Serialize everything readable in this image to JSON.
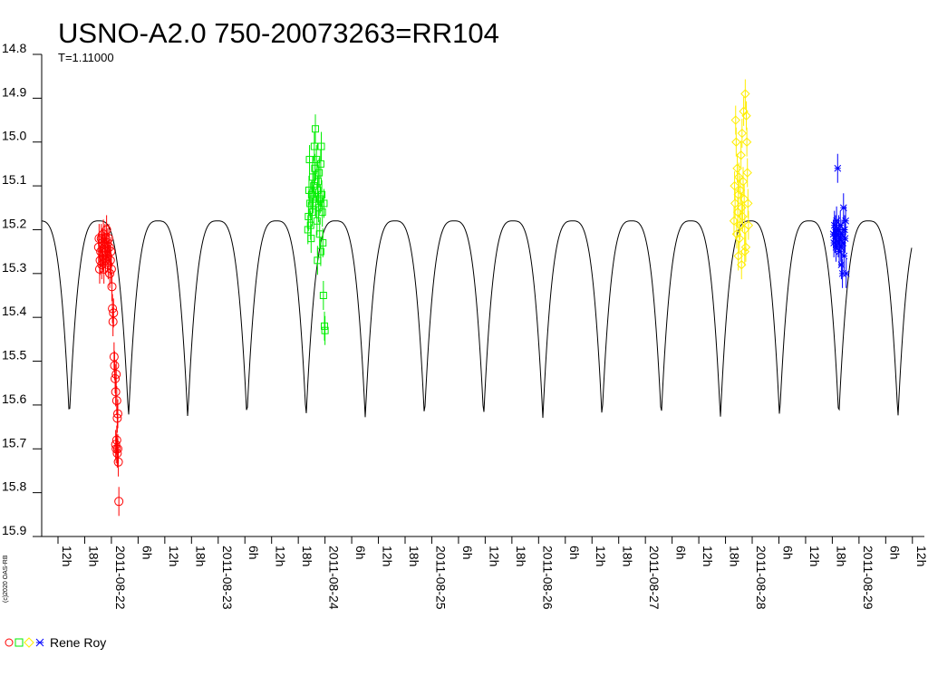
{
  "chart_data": {
    "type": "scatter",
    "title": "USNO-A2.0 750-20073263=RR104",
    "subtitle": "T=1.11000",
    "copyright": "(c)2020 OAS-RB",
    "ylim": [
      15.9,
      14.8
    ],
    "yticks": [
      "14.8",
      "14.9",
      "15.0",
      "15.1",
      "15.2",
      "15.3",
      "15.4",
      "15.5",
      "15.6",
      "15.7",
      "15.8",
      "15.9"
    ],
    "x_unit": "days since 2011-08-21 00:00",
    "xlim": [
      1.5,
      9.68
    ],
    "xticks": [
      {
        "x": 1.5,
        "label": "12h"
      },
      {
        "x": 1.75,
        "label": "18h"
      },
      {
        "x": 2.0,
        "label": "2011-08-22"
      },
      {
        "x": 2.25,
        "label": "6h"
      },
      {
        "x": 2.5,
        "label": "12h"
      },
      {
        "x": 2.75,
        "label": "18h"
      },
      {
        "x": 3.0,
        "label": "2011-08-23"
      },
      {
        "x": 3.25,
        "label": "6h"
      },
      {
        "x": 3.5,
        "label": "12h"
      },
      {
        "x": 3.75,
        "label": "18h"
      },
      {
        "x": 4.0,
        "label": "2011-08-24"
      },
      {
        "x": 4.25,
        "label": "6h"
      },
      {
        "x": 4.5,
        "label": "12h"
      },
      {
        "x": 4.75,
        "label": "18h"
      },
      {
        "x": 5.0,
        "label": "2011-08-25"
      },
      {
        "x": 5.25,
        "label": "6h"
      },
      {
        "x": 5.5,
        "label": "12h"
      },
      {
        "x": 5.75,
        "label": "18h"
      },
      {
        "x": 6.0,
        "label": "2011-08-26"
      },
      {
        "x": 6.25,
        "label": "6h"
      },
      {
        "x": 6.5,
        "label": "12h"
      },
      {
        "x": 6.75,
        "label": "18h"
      },
      {
        "x": 7.0,
        "label": "2011-08-27"
      },
      {
        "x": 7.25,
        "label": "6h"
      },
      {
        "x": 7.5,
        "label": "12h"
      },
      {
        "x": 7.75,
        "label": "18h"
      },
      {
        "x": 8.0,
        "label": "2011-08-28"
      },
      {
        "x": 8.25,
        "label": "6h"
      },
      {
        "x": 8.5,
        "label": "12h"
      },
      {
        "x": 8.75,
        "label": "18h"
      },
      {
        "x": 9.0,
        "label": "2011-08-29"
      },
      {
        "x": 9.25,
        "label": "6h"
      },
      {
        "x": 9.5,
        "label": "12h"
      }
    ],
    "model_curve": {
      "max_mag": 15.18,
      "min_mag": 15.63,
      "period_days": 0.5542,
      "min_epoch": 1.606
    },
    "legend": {
      "label": "Rene Roy",
      "markers": [
        "circle",
        "square",
        "diamond",
        "star"
      ]
    },
    "series": [
      {
        "marker": "circle",
        "color": "#ff0000",
        "points": [
          [
            1.88,
            15.24
          ],
          [
            1.89,
            15.29
          ],
          [
            1.885,
            15.22
          ],
          [
            1.895,
            15.27
          ],
          [
            1.9,
            15.25
          ],
          [
            1.905,
            15.22
          ],
          [
            1.91,
            15.28
          ],
          [
            1.915,
            15.23
          ],
          [
            1.92,
            15.26
          ],
          [
            1.925,
            15.21
          ],
          [
            1.93,
            15.29
          ],
          [
            1.935,
            15.24
          ],
          [
            1.94,
            15.22
          ],
          [
            1.945,
            15.27
          ],
          [
            1.95,
            15.25
          ],
          [
            1.955,
            15.2
          ],
          [
            1.96,
            15.23
          ],
          [
            1.965,
            15.26
          ],
          [
            1.97,
            15.28
          ],
          [
            1.975,
            15.22
          ],
          [
            1.98,
            15.24
          ],
          [
            1.985,
            15.3
          ],
          [
            1.99,
            15.27
          ],
          [
            1.995,
            15.25
          ],
          [
            2.0,
            15.29
          ],
          [
            2.005,
            15.33
          ],
          [
            2.01,
            15.38
          ],
          [
            2.015,
            15.41
          ],
          [
            2.02,
            15.39
          ],
          [
            2.025,
            15.49
          ],
          [
            2.03,
            15.51
          ],
          [
            2.035,
            15.54
          ],
          [
            2.04,
            15.57
          ],
          [
            2.045,
            15.53
          ],
          [
            2.05,
            15.59
          ],
          [
            2.055,
            15.63
          ],
          [
            2.06,
            15.62
          ],
          [
            2.04,
            15.69
          ],
          [
            2.045,
            15.7
          ],
          [
            2.05,
            15.68
          ],
          [
            2.055,
            15.71
          ],
          [
            2.06,
            15.7
          ],
          [
            2.065,
            15.73
          ],
          [
            2.07,
            15.82
          ]
        ]
      },
      {
        "marker": "square",
        "color": "#00ee00",
        "points": [
          [
            3.84,
            15.2
          ],
          [
            3.845,
            15.17
          ],
          [
            3.85,
            15.11
          ],
          [
            3.855,
            15.04
          ],
          [
            3.86,
            15.14
          ],
          [
            3.865,
            15.19
          ],
          [
            3.87,
            15.22
          ],
          [
            3.875,
            15.12
          ],
          [
            3.88,
            15.16
          ],
          [
            3.885,
            15.08
          ],
          [
            3.89,
            15.13
          ],
          [
            3.895,
            15.1
          ],
          [
            3.9,
            15.01
          ],
          [
            3.905,
            15.06
          ],
          [
            3.91,
            14.97
          ],
          [
            3.915,
            15.14
          ],
          [
            3.92,
            15.04
          ],
          [
            3.925,
            15.18
          ],
          [
            3.93,
            15.11
          ],
          [
            3.935,
            15.09
          ],
          [
            3.94,
            15.15
          ],
          [
            3.945,
            15.07
          ],
          [
            3.95,
            15.21
          ],
          [
            3.955,
            15.13
          ],
          [
            3.96,
            15.05
          ],
          [
            3.965,
            15.01
          ],
          [
            3.97,
            15.12
          ],
          [
            3.975,
            15.16
          ],
          [
            3.98,
            15.23
          ],
          [
            3.985,
            15.35
          ],
          [
            3.99,
            15.14
          ],
          [
            3.995,
            15.42
          ],
          [
            4.0,
            15.43
          ],
          [
            3.93,
            15.27
          ],
          [
            3.96,
            15.25
          ]
        ]
      },
      {
        "marker": "diamond",
        "color": "#ffee00",
        "points": [
          [
            7.83,
            15.18
          ],
          [
            7.835,
            15.1
          ],
          [
            7.84,
            15.14
          ],
          [
            7.845,
            14.95
          ],
          [
            7.85,
            15.0
          ],
          [
            7.855,
            15.21
          ],
          [
            7.86,
            15.06
          ],
          [
            7.865,
            15.16
          ],
          [
            7.87,
            15.12
          ],
          [
            7.875,
            15.08
          ],
          [
            7.88,
            15.22
          ],
          [
            7.885,
            15.19
          ],
          [
            7.89,
            15.11
          ],
          [
            7.895,
            15.03
          ],
          [
            7.9,
            15.15
          ],
          [
            7.905,
            14.98
          ],
          [
            7.91,
            15.17
          ],
          [
            7.915,
            15.09
          ],
          [
            7.92,
            14.93
          ],
          [
            7.925,
            15.13
          ],
          [
            7.93,
            15.2
          ],
          [
            7.935,
            14.89
          ],
          [
            7.94,
            15.24
          ],
          [
            7.945,
            14.94
          ],
          [
            7.95,
            15.0
          ],
          [
            7.955,
            15.07
          ],
          [
            7.96,
            15.14
          ],
          [
            7.965,
            15.19
          ],
          [
            7.87,
            15.26
          ],
          [
            7.9,
            15.28
          ],
          [
            7.93,
            15.25
          ]
        ]
      },
      {
        "marker": "star",
        "color": "#0000ff",
        "points": [
          [
            8.76,
            15.21
          ],
          [
            8.765,
            15.23
          ],
          [
            8.77,
            15.19
          ],
          [
            8.775,
            15.22
          ],
          [
            8.78,
            15.2
          ],
          [
            8.785,
            15.24
          ],
          [
            8.79,
            15.18
          ],
          [
            8.795,
            15.21
          ],
          [
            8.8,
            15.06
          ],
          [
            8.805,
            15.23
          ],
          [
            8.81,
            15.2
          ],
          [
            8.815,
            15.25
          ],
          [
            8.82,
            15.22
          ],
          [
            8.825,
            15.19
          ],
          [
            8.83,
            15.24
          ],
          [
            8.835,
            15.28
          ],
          [
            8.84,
            15.21
          ],
          [
            8.845,
            15.3
          ],
          [
            8.85,
            15.23
          ],
          [
            8.855,
            15.15
          ],
          [
            8.86,
            15.26
          ],
          [
            8.865,
            15.2
          ],
          [
            8.87,
            15.22
          ],
          [
            8.875,
            15.18
          ],
          [
            8.88,
            15.3
          ]
        ]
      }
    ]
  }
}
